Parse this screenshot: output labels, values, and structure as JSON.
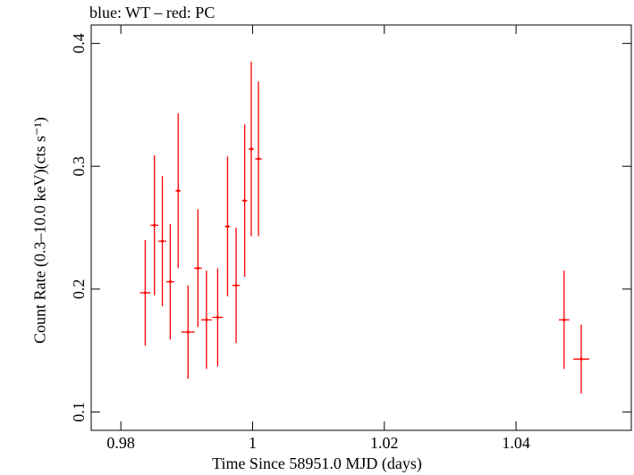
{
  "title": "blue: WT – red: PC",
  "chart_data": {
    "type": "scatter",
    "xlabel": "Time Since 58951.0 MJD (days)",
    "ylabel": "Count Rate (0.3–10.0 keV)(cts s⁻¹)",
    "xlim": [
      0.9755,
      1.0575
    ],
    "ylim": [
      0.085,
      0.415
    ],
    "xticks": [
      0.98,
      1,
      1.02,
      1.04
    ],
    "xtick_labels": [
      "0.98",
      "1",
      "1.02",
      "1.04"
    ],
    "yticks": [
      0.1,
      0.2,
      0.3,
      0.4
    ],
    "ytick_labels": [
      "0.1",
      "0.2",
      "0.3",
      "0.4"
    ],
    "series": [
      {
        "color": "#ff0000",
        "points": [
          {
            "x": 0.9837,
            "xerr": 0.0008,
            "y": 0.197,
            "yerr_lo": 0.043,
            "yerr_hi": 0.043
          },
          {
            "x": 0.9851,
            "xerr": 0.0006,
            "y": 0.252,
            "yerr_lo": 0.057,
            "yerr_hi": 0.057
          },
          {
            "x": 0.9863,
            "xerr": 0.0006,
            "y": 0.239,
            "yerr_lo": 0.053,
            "yerr_hi": 0.053
          },
          {
            "x": 0.9875,
            "xerr": 0.0006,
            "y": 0.206,
            "yerr_lo": 0.047,
            "yerr_hi": 0.047
          },
          {
            "x": 0.9887,
            "xerr": 0.0004,
            "y": 0.28,
            "yerr_lo": 0.063,
            "yerr_hi": 0.063
          },
          {
            "x": 0.9902,
            "xerr": 0.001,
            "y": 0.165,
            "yerr_lo": 0.038,
            "yerr_hi": 0.038
          },
          {
            "x": 0.9917,
            "xerr": 0.0006,
            "y": 0.217,
            "yerr_lo": 0.048,
            "yerr_hi": 0.048
          },
          {
            "x": 0.993,
            "xerr": 0.0008,
            "y": 0.175,
            "yerr_lo": 0.04,
            "yerr_hi": 0.04
          },
          {
            "x": 0.9947,
            "xerr": 0.0008,
            "y": 0.177,
            "yerr_lo": 0.04,
            "yerr_hi": 0.04
          },
          {
            "x": 0.9962,
            "xerr": 0.0004,
            "y": 0.251,
            "yerr_lo": 0.057,
            "yerr_hi": 0.057
          },
          {
            "x": 0.9975,
            "xerr": 0.0006,
            "y": 0.203,
            "yerr_lo": 0.047,
            "yerr_hi": 0.047
          },
          {
            "x": 0.9988,
            "xerr": 0.0004,
            "y": 0.272,
            "yerr_lo": 0.062,
            "yerr_hi": 0.062
          },
          {
            "x": 0.9998,
            "xerr": 0.0004,
            "y": 0.314,
            "yerr_lo": 0.071,
            "yerr_hi": 0.071
          },
          {
            "x": 1.0009,
            "xerr": 0.0005,
            "y": 0.306,
            "yerr_lo": 0.063,
            "yerr_hi": 0.063
          },
          {
            "x": 1.0473,
            "xerr": 0.0008,
            "y": 0.175,
            "yerr_lo": 0.04,
            "yerr_hi": 0.04
          },
          {
            "x": 1.0499,
            "xerr": 0.0012,
            "y": 0.143,
            "yerr_lo": 0.028,
            "yerr_hi": 0.028
          }
        ]
      }
    ]
  }
}
